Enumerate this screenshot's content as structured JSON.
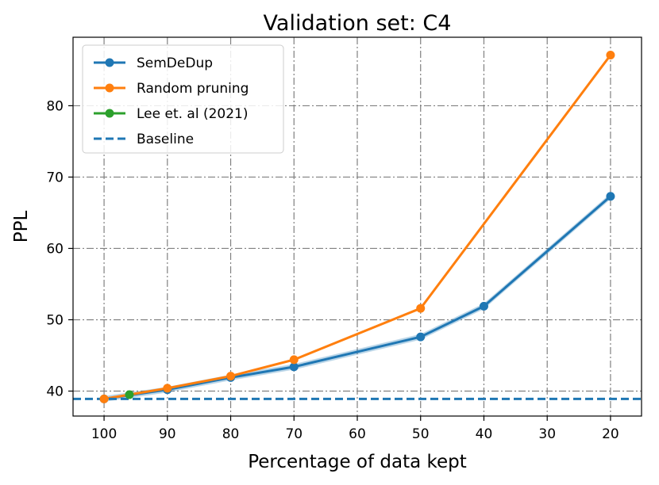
{
  "chart_data": {
    "type": "line",
    "title": "Validation set: C4",
    "xlabel": "Percentage of data kept",
    "ylabel": "PPL",
    "x_inverted": true,
    "xlim": [
      104.9,
      15.1
    ],
    "ylim": [
      36.5,
      89.6
    ],
    "xticks": [
      100,
      90,
      80,
      70,
      60,
      50,
      40,
      30,
      20
    ],
    "yticks": [
      40,
      50,
      60,
      70,
      80
    ],
    "grid": true,
    "legend_position": "top-left",
    "series": [
      {
        "name": "SemDeDup",
        "color": "#1f77b4",
        "style": "solid-marker",
        "x": [
          100,
          90,
          80,
          70,
          50,
          40,
          20
        ],
        "y": [
          38.9,
          40.2,
          41.9,
          43.4,
          47.6,
          51.9,
          67.3
        ],
        "band": 0.4
      },
      {
        "name": "Random pruning",
        "color": "#ff7f0e",
        "style": "solid-marker",
        "x": [
          100,
          90,
          80,
          70,
          50,
          20
        ],
        "y": [
          38.9,
          40.4,
          42.1,
          44.4,
          51.6,
          87.1
        ]
      },
      {
        "name": "Lee et. al (2021)",
        "color": "#2ca02c",
        "style": "solid-marker",
        "x": [
          96
        ],
        "y": [
          39.5
        ]
      },
      {
        "name": "Baseline",
        "color": "#1f77b4",
        "style": "dashed",
        "y_constant": 38.9
      }
    ]
  }
}
